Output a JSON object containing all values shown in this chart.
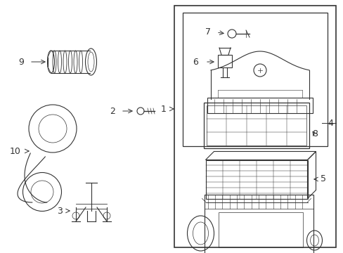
{
  "bg_color": "#ffffff",
  "line_color": "#333333",
  "figsize": [
    4.89,
    3.6
  ],
  "dpi": 100
}
